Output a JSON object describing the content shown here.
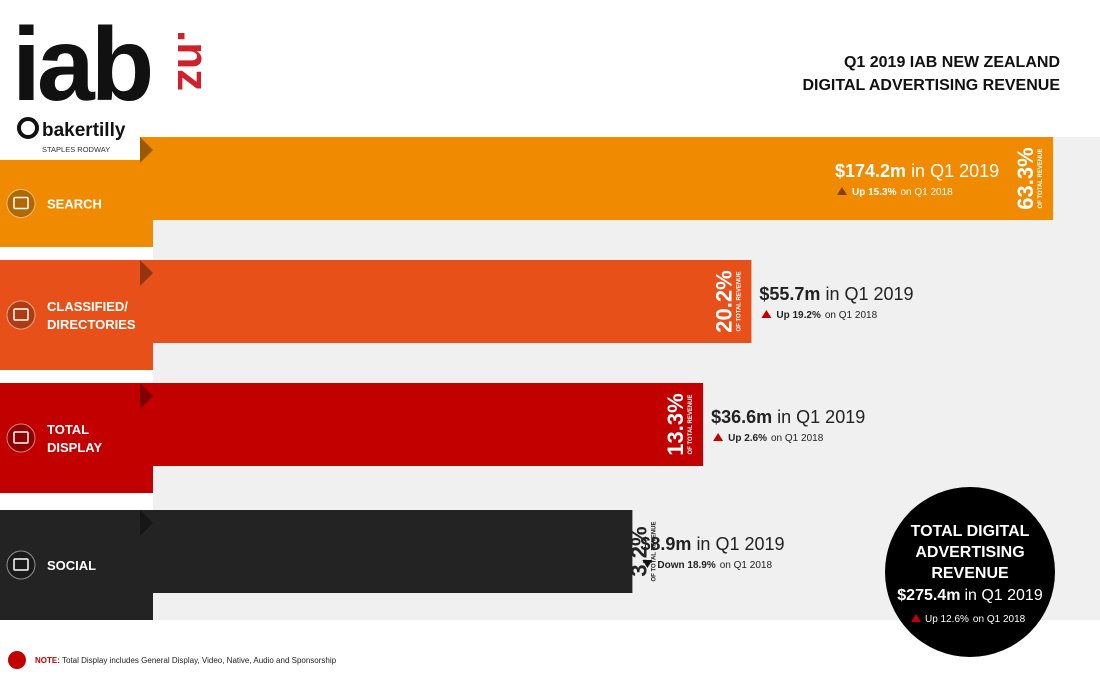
{
  "logo": {
    "main": "iab",
    "suffix": ".nz",
    "partner": "bakertilly",
    "partner_sub": "STAPLES RODWAY"
  },
  "chart_data": {
    "type": "bar",
    "orientation": "horizontal",
    "title": [
      "Q1 2019 IAB NEW ZEALAND",
      "DIGITAL ADVERTISING REVENUE"
    ],
    "categories": [
      [
        "SEARCH"
      ],
      [
        "CLASSIFIED/",
        "DIRECTORIES"
      ],
      [
        "TOTAL",
        "DISPLAY"
      ],
      [
        "SOCIAL"
      ]
    ],
    "colors": [
      "#f08a00",
      "#e8501a",
      "#c20000",
      "#232323"
    ],
    "values": [
      63.3,
      20.2,
      13.3,
      3.2
    ],
    "value_labels": [
      "63.3%",
      "20.2%",
      "13.3%",
      "3.2%"
    ],
    "value_caption": "OF TOTAL REVENUE",
    "revenue": {
      "values": [
        174.2,
        55.7,
        36.6,
        8.9
      ],
      "value_labels": [
        "$174.2m",
        "$55.7m",
        "$36.6m",
        "$8.9m"
      ]
    },
    "change": {
      "values": [
        15.3,
        19.2,
        2.6,
        -18.9
      ],
      "value_labels": [
        "Up 15.3%",
        "Up 19.2%",
        "Up 2.6%",
        "Down 18.9%"
      ]
    },
    "period": "in Q1 2019",
    "comparison": "on Q1 2018",
    "total": {
      "title": [
        "TOTAL DIGITAL",
        "ADVERTISING",
        "REVENUE"
      ],
      "value": 275.4,
      "value_label": "$275.4m",
      "change": 12.6,
      "change_label": "Up 12.6%"
    }
  },
  "note": {
    "label": "NOTE:",
    "text": "Total Display includes General Display, Video, Native, Audio and Sponsorship"
  }
}
